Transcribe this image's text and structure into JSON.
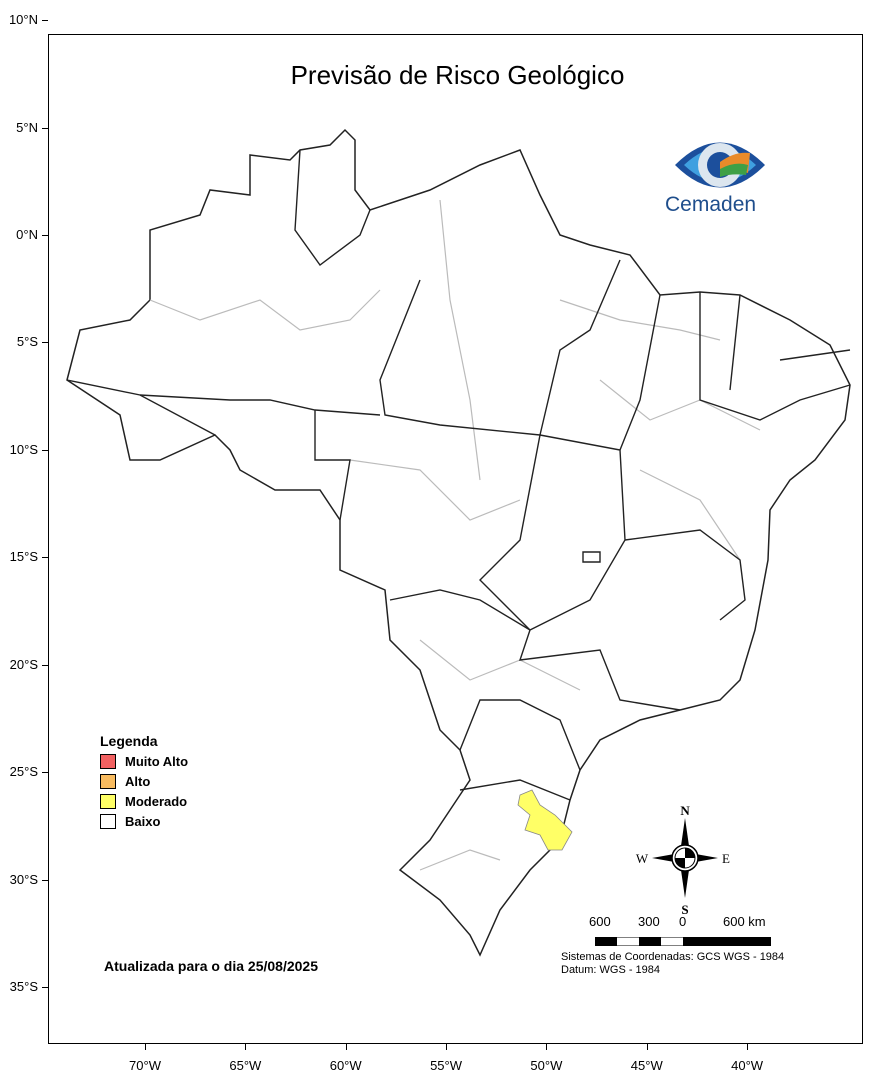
{
  "title": "Previsão de Risco Geológico",
  "logo": {
    "text": "Cemaden"
  },
  "axes": {
    "lat_ticks": [
      {
        "value": 10,
        "label": "10°N"
      },
      {
        "value": 5,
        "label": "5°N"
      },
      {
        "value": 0,
        "label": "0°N"
      },
      {
        "value": -5,
        "label": "5°S"
      },
      {
        "value": -10,
        "label": "10°S"
      },
      {
        "value": -15,
        "label": "15°S"
      },
      {
        "value": -20,
        "label": "20°S"
      },
      {
        "value": -25,
        "label": "25°S"
      },
      {
        "value": -30,
        "label": "30°S"
      },
      {
        "value": -35,
        "label": "35°S"
      }
    ],
    "lon_ticks": [
      {
        "value": -70,
        "label": "70°W"
      },
      {
        "value": -65,
        "label": "65°W"
      },
      {
        "value": -60,
        "label": "60°W"
      },
      {
        "value": -55,
        "label": "55°W"
      },
      {
        "value": -50,
        "label": "50°W"
      },
      {
        "value": -45,
        "label": "45°W"
      },
      {
        "value": -40,
        "label": "40°W"
      }
    ]
  },
  "legend": {
    "title": "Legenda",
    "items": [
      {
        "label": "Muito Alto",
        "color": "#f26161"
      },
      {
        "label": "Alto",
        "color": "#f8bb5f"
      },
      {
        "label": "Moderado",
        "color": "#ffff66"
      },
      {
        "label": "Baixo",
        "color": "#ffffff"
      }
    ]
  },
  "updated": "Atualizada para o dia 25/08/2025",
  "compass": {
    "n": "N",
    "s": "S",
    "e": "E",
    "w": "W"
  },
  "scale": {
    "labels": [
      "600",
      "300",
      "0",
      "600 km"
    ]
  },
  "crs": {
    "system": "Sistemas de Coordenadas: GCS WGS - 1984",
    "datum": "Datum: WGS - 1984"
  }
}
